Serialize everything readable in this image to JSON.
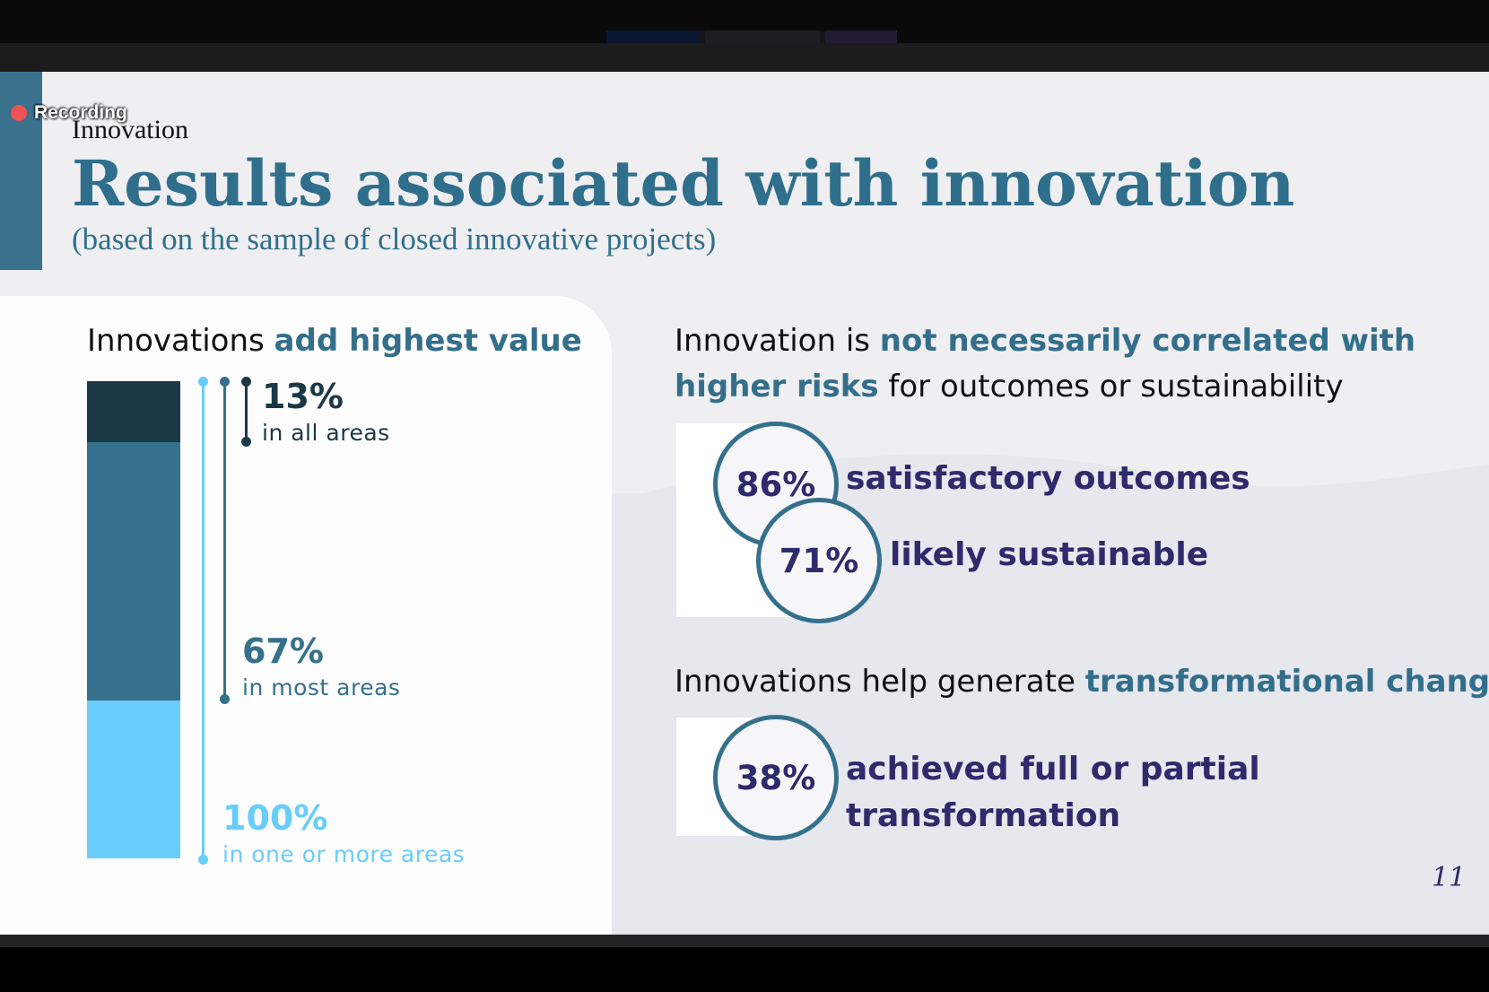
{
  "recording": {
    "label": "Recording"
  },
  "slide": {
    "section": "Innovation",
    "title": "Results associated with innovation",
    "subtitle": "(based on the sample of closed innovative projects)",
    "page_number": "11",
    "colors": {
      "accent": "#3a718d",
      "title": "#2f6f8c",
      "dark": "#1b3846",
      "mid": "#35708c",
      "light": "#68cdfb",
      "purple": "#2e2a6b"
    },
    "left": {
      "heading_plain": "Innovations",
      "heading_highlight": "add highest value",
      "items": [
        {
          "pct": "13%",
          "desc": "in all areas"
        },
        {
          "pct": "67%",
          "desc": "in most areas"
        },
        {
          "pct": "100%",
          "desc": "in one or more areas"
        }
      ]
    },
    "right": {
      "risk_heading": {
        "part1": "Innovation is",
        "part2": "not necessarily correlated with",
        "part3": "higher risks",
        "part4": "for outcomes or sustainability"
      },
      "stats": [
        {
          "pct": "86%",
          "label": "satisfactory outcomes"
        },
        {
          "pct": "71%",
          "label": "likely sustainable"
        }
      ],
      "transform_heading": {
        "part1": "Innovations help generate",
        "part2": "transformational change"
      },
      "transform_stat": {
        "pct": "38%",
        "label_line1": "achieved full or partial",
        "label_line2": "transformation"
      }
    }
  }
}
